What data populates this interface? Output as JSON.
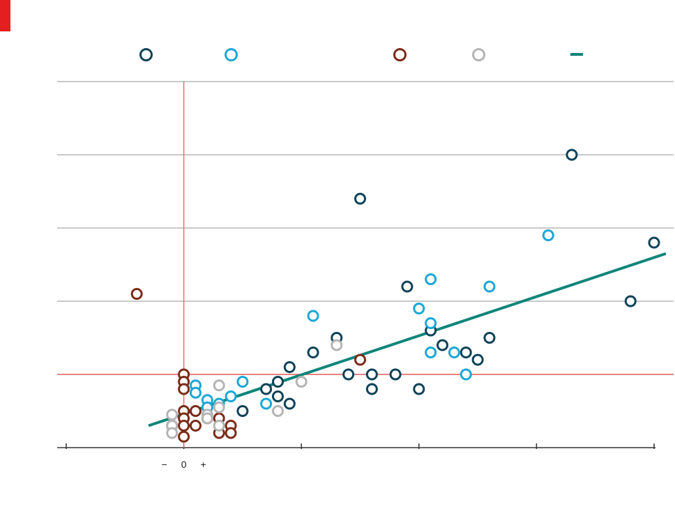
{
  "colors": {
    "brand": "#e41f1f",
    "series_dark_blue": "#0d4258",
    "series_light_blue": "#1ba6d6",
    "series_brown": "#7b2a16",
    "series_grey": "#b4b4b4",
    "trend": "#0d857a",
    "reference_lines": "#ef6b6b",
    "gridlines": "#c8c8c8"
  },
  "legend": {
    "items": [
      {
        "marker": "circle",
        "color": "#0d4258"
      },
      {
        "marker": "circle",
        "color": "#1ba6d6"
      },
      {
        "marker": "circle",
        "color": "#7b2a16"
      },
      {
        "marker": "circle",
        "color": "#b4b4b4"
      },
      {
        "marker": "line",
        "color": "#0d857a"
      }
    ]
  },
  "chart_data": {
    "type": "scatter",
    "title": "",
    "xlabel": "",
    "ylabel": "",
    "xlim": [
      -10,
      40
    ],
    "ylim": [
      0,
      5
    ],
    "x_ticks": [
      -10,
      0,
      10,
      20,
      30,
      40
    ],
    "y_ticks": [
      0,
      1,
      2,
      3,
      4,
      5
    ],
    "x_tick_labels_visible": [
      "−",
      "0",
      "+"
    ],
    "gridlines": true,
    "reference_lines": {
      "x": 0,
      "y": 1
    },
    "series": [
      {
        "color": "#0d4258",
        "points": [
          [
            15,
            3.4
          ],
          [
            33,
            4.0
          ],
          [
            40,
            2.8
          ],
          [
            38,
            2.0
          ],
          [
            19,
            2.2
          ],
          [
            21,
            1.6
          ],
          [
            22,
            1.4
          ],
          [
            26,
            1.5
          ],
          [
            24,
            1.3
          ],
          [
            25,
            1.2
          ],
          [
            14,
            1.0
          ],
          [
            16,
            1.0
          ],
          [
            18,
            1.0
          ],
          [
            16,
            0.8
          ],
          [
            20,
            0.8
          ],
          [
            9,
            1.1
          ],
          [
            8,
            0.9
          ],
          [
            7,
            0.8
          ],
          [
            8,
            0.7
          ],
          [
            9,
            0.6
          ],
          [
            13,
            1.5
          ],
          [
            11,
            1.3
          ],
          [
            5,
            0.5
          ]
        ]
      },
      {
        "color": "#1ba6d6",
        "points": [
          [
            31,
            2.9
          ],
          [
            21,
            2.3
          ],
          [
            26,
            2.2
          ],
          [
            11,
            1.8
          ],
          [
            20,
            1.9
          ],
          [
            21,
            1.7
          ],
          [
            21,
            1.3
          ],
          [
            23,
            1.3
          ],
          [
            24,
            1.0
          ],
          [
            5,
            0.9
          ],
          [
            4,
            0.7
          ],
          [
            3,
            0.6
          ],
          [
            7,
            0.6
          ],
          [
            1,
            0.85
          ],
          [
            1,
            0.75
          ],
          [
            2,
            0.65
          ],
          [
            2,
            0.55
          ]
        ]
      },
      {
        "color": "#7b2a16",
        "points": [
          [
            -4,
            2.1
          ],
          [
            15,
            1.2
          ],
          [
            0,
            1.0
          ],
          [
            0,
            0.9
          ],
          [
            0,
            0.8
          ],
          [
            1,
            0.5
          ],
          [
            2,
            0.4
          ],
          [
            3,
            0.4
          ],
          [
            4,
            0.3
          ],
          [
            0,
            0.5
          ],
          [
            0,
            0.4
          ],
          [
            0,
            0.3
          ],
          [
            3,
            0.2
          ],
          [
            0,
            0.15
          ],
          [
            1,
            0.3
          ],
          [
            4,
            0.2
          ],
          [
            -1,
            0.3
          ]
        ]
      },
      {
        "color": "#b4b4b4",
        "points": [
          [
            13,
            1.4
          ],
          [
            10,
            0.9
          ],
          [
            8,
            0.5
          ],
          [
            3,
            0.85
          ],
          [
            3,
            0.55
          ],
          [
            2,
            0.45
          ],
          [
            -1,
            0.45
          ],
          [
            -1,
            0.3
          ],
          [
            3,
            0.3
          ],
          [
            2,
            0.4
          ],
          [
            -1,
            0.2
          ]
        ]
      }
    ],
    "trend_line": {
      "color": "#0d857a",
      "x": [
        -3,
        41
      ],
      "y": [
        0.3,
        2.65
      ]
    }
  }
}
